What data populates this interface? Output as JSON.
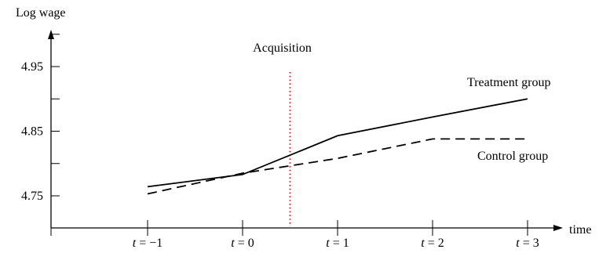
{
  "chart_data": {
    "type": "line",
    "ylabel": "Log wage",
    "xlabel": "time",
    "x_categories": [
      "t = −1",
      "t = 0",
      "t = 1",
      "t = 2",
      "t = 3"
    ],
    "x_values": [
      -1,
      0,
      1,
      2,
      3
    ],
    "y_tick_labels": [
      "4.95",
      "4.85",
      "4.75"
    ],
    "y_tick_values": [
      4.95,
      4.85,
      4.75
    ],
    "ylim": [
      4.7,
      5.0
    ],
    "series": [
      {
        "name": "Treatment group",
        "style": "solid",
        "color": "#000000",
        "x": [
          -1,
          0,
          1,
          2,
          3
        ],
        "y": [
          4.764,
          4.783,
          4.843,
          4.872,
          4.9
        ]
      },
      {
        "name": "Control group",
        "style": "dashed",
        "color": "#000000",
        "x": [
          -1,
          0,
          1,
          2,
          3
        ],
        "y": [
          4.753,
          4.785,
          4.808,
          4.838,
          4.838
        ]
      }
    ],
    "event": {
      "label": "Acquisition",
      "x": 0.5,
      "color": "#e02020",
      "style": "dotted"
    },
    "grid": false,
    "legend": "inline labels"
  }
}
